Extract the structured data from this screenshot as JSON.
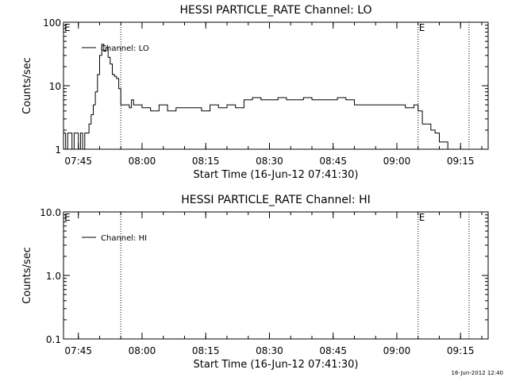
{
  "footer_timestamp": "16-Jun-2012 12:40",
  "chart_data": [
    {
      "type": "line",
      "title": "HESSI PARTICLE_RATE Channel: LO",
      "xlabel": "Start Time (16-Jun-12 07:41:30)",
      "ylabel": "Counts/sec",
      "yscale": "log",
      "xlim": [
        "07:41:30",
        "09:21:30"
      ],
      "ylim": [
        1,
        100
      ],
      "x_ticks": [
        "07:45",
        "08:00",
        "08:15",
        "08:30",
        "08:45",
        "09:00",
        "09:15"
      ],
      "y_ticks": [
        "1",
        "10",
        "100"
      ],
      "legend": {
        "position": "top-left",
        "entries": [
          "Channel: LO"
        ]
      },
      "markers": [
        {
          "label": "E",
          "time": "07:41:30"
        },
        {
          "label": "",
          "time": "07:55:00"
        },
        {
          "label": "E",
          "time": "09:05:00"
        },
        {
          "label": "",
          "time": "09:17:00"
        }
      ],
      "series": [
        {
          "name": "Channel: LO",
          "x": [
            "07:41:30",
            "07:42:00",
            "07:42:30",
            "07:43:00",
            "07:43:30",
            "07:44:00",
            "07:44:30",
            "07:45:00",
            "07:45:30",
            "07:46:00",
            "07:46:30",
            "07:47:00",
            "07:47:30",
            "07:48:00",
            "07:48:30",
            "07:49:00",
            "07:49:30",
            "07:50:00",
            "07:50:30",
            "07:51:00",
            "07:51:30",
            "07:52:00",
            "07:52:30",
            "07:53:00",
            "07:53:30",
            "07:54:00",
            "07:54:30",
            "07:55:00",
            "07:55:30",
            "07:56:00",
            "07:56:30",
            "07:57:00",
            "07:57:30",
            "07:58:00",
            "07:58:30",
            "07:59:00",
            "08:00:00",
            "08:02:00",
            "08:04:00",
            "08:06:00",
            "08:08:00",
            "08:10:00",
            "08:12:00",
            "08:14:00",
            "08:16:00",
            "08:18:00",
            "08:20:00",
            "08:22:00",
            "08:24:00",
            "08:26:00",
            "08:28:00",
            "08:30:00",
            "08:32:00",
            "08:34:00",
            "08:36:00",
            "08:38:00",
            "08:40:00",
            "08:42:00",
            "08:44:00",
            "08:46:00",
            "08:48:00",
            "08:50:00",
            "08:52:00",
            "08:54:00",
            "08:56:00",
            "08:58:00",
            "09:00:00",
            "09:02:00",
            "09:04:00",
            "09:05:00",
            "09:06:00",
            "09:07:00",
            "09:08:00",
            "09:09:00",
            "09:10:00",
            "09:11:00",
            "09:12:00",
            "09:13:00"
          ],
          "values": [
            1.8,
            1.0,
            1.8,
            1.8,
            1.0,
            1.8,
            1.8,
            1.0,
            1.8,
            1.0,
            1.8,
            1.8,
            2.5,
            3.5,
            5,
            8,
            15,
            30,
            45,
            35,
            40,
            28,
            22,
            15,
            14,
            13,
            9,
            5,
            5,
            5,
            5,
            4.5,
            6,
            5,
            5,
            5,
            4.5,
            4,
            5,
            4,
            4.5,
            4.5,
            4.5,
            4,
            5,
            4.5,
            5,
            4.5,
            6,
            6.5,
            6,
            6,
            6.5,
            6,
            6,
            6.5,
            6,
            6,
            6,
            6.5,
            6,
            5,
            5,
            5,
            5,
            5,
            5,
            4.5,
            5,
            4,
            2.5,
            2.5,
            2,
            1.8,
            1.3,
            1.3,
            1.0,
            1.0
          ]
        }
      ]
    },
    {
      "type": "line",
      "title": "HESSI PARTICLE_RATE Channel: HI",
      "xlabel": "Start Time (16-Jun-12 07:41:30)",
      "ylabel": "Counts/sec",
      "yscale": "log",
      "xlim": [
        "07:41:30",
        "09:21:30"
      ],
      "ylim": [
        0.1,
        10
      ],
      "x_ticks": [
        "07:45",
        "08:00",
        "08:15",
        "08:30",
        "08:45",
        "09:00",
        "09:15"
      ],
      "y_ticks": [
        "0.1",
        "1.0",
        "10.0"
      ],
      "legend": {
        "position": "top-left",
        "entries": [
          "Channel: HI"
        ]
      },
      "markers": [
        {
          "label": "E",
          "time": "07:41:30"
        },
        {
          "label": "",
          "time": "07:55:00"
        },
        {
          "label": "E",
          "time": "09:05:00"
        },
        {
          "label": "",
          "time": "09:17:00"
        }
      ],
      "series": [
        {
          "name": "Channel: HI",
          "x": [],
          "values": []
        }
      ]
    }
  ]
}
